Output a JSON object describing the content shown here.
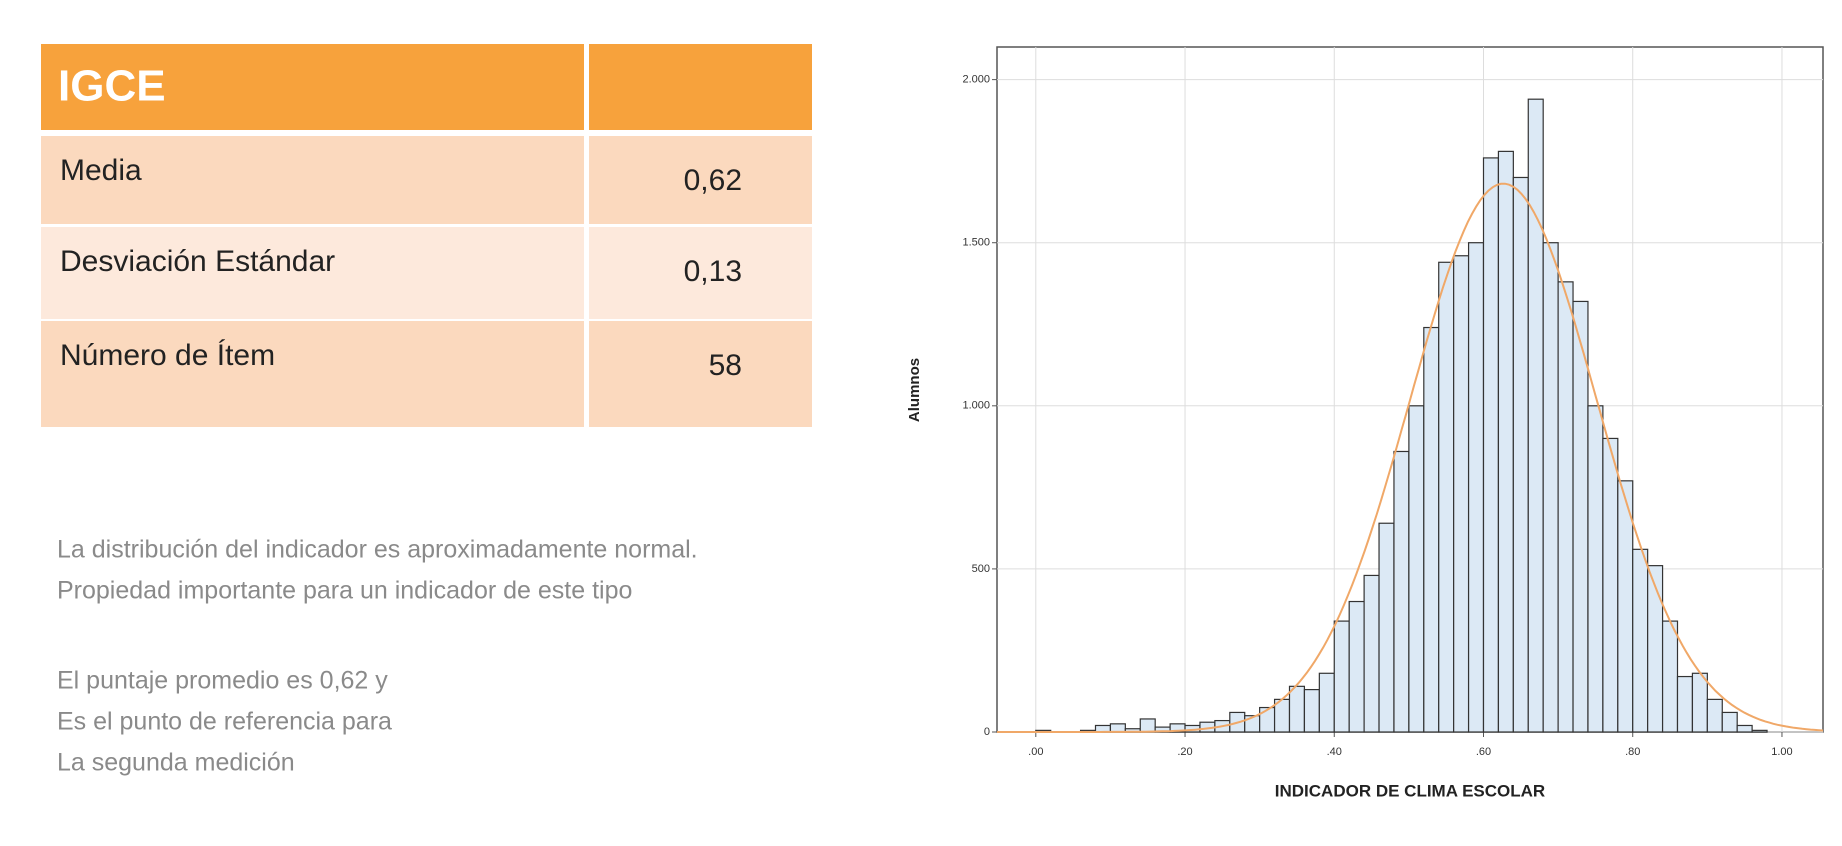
{
  "table": {
    "title": "IGCE",
    "rows": [
      [
        "Media",
        "0,62"
      ],
      [
        "Desviación Estándar",
        "0,13"
      ],
      [
        "Número de Ítem",
        "58"
      ]
    ]
  },
  "notes": [
    [
      "La distribución del indicador es aproximadamente normal.",
      "Propiedad importante para un indicador de este tipo"
    ],
    [
      "El puntaje promedio es 0,62 y",
      "Es el punto de referencia para",
      "La segunda medición"
    ]
  ],
  "chart_data": {
    "type": "histogram",
    "x_label": "INDICADOR DE CLIMA ESCOLAR",
    "y_label": "Alumnos",
    "bins": [
      0,
      0.02,
      0.04,
      0.06,
      0.08,
      0.1,
      0.12,
      0.14,
      0.16,
      0.18,
      0.2,
      0.22,
      0.24,
      0.26,
      0.28,
      0.3,
      0.32,
      0.34,
      0.36,
      0.38,
      0.4,
      0.42,
      0.44,
      0.46,
      0.48,
      0.5,
      0.52,
      0.54,
      0.56,
      0.58,
      0.6,
      0.62,
      0.64,
      0.66,
      0.68,
      0.7,
      0.72,
      0.74,
      0.76,
      0.78,
      0.8,
      0.82,
      0.84,
      0.86,
      0.88,
      0.9,
      0.92,
      0.94,
      0.96,
      0.98,
      1
    ],
    "values": [
      5,
      0,
      0,
      5,
      20,
      25,
      10,
      40,
      15,
      25,
      20,
      30,
      35,
      60,
      50,
      75,
      100,
      140,
      130,
      180,
      340,
      400,
      480,
      640,
      860,
      1000,
      1240,
      1440,
      1460,
      1500,
      1760,
      1780,
      1700,
      1940,
      1500,
      1380,
      1320,
      1000,
      900,
      770,
      560,
      510,
      340,
      170,
      180,
      100,
      60,
      20,
      5,
      0
    ],
    "color": "#dce9f5",
    "edge_color": "#333333",
    "fit": {
      "type": "normal",
      "color": "#f0a868"
    },
    "xlim": [
      -0.052,
      1.055
    ],
    "ylim": [
      0,
      2100
    ],
    "xticks": [
      {
        "value": 0,
        "label": ".00"
      },
      {
        "value": 0.2,
        "label": ".20"
      },
      {
        "value": 0.4,
        "label": ".40"
      },
      {
        "value": 0.6,
        "label": ".60"
      },
      {
        "value": 0.8,
        "label": ".80"
      },
      {
        "value": 1,
        "label": "1.00"
      }
    ],
    "yticks": [
      0,
      500,
      {
        "value": 1000,
        "label": "1.000"
      },
      {
        "value": 1500,
        "label": "1.500"
      },
      {
        "value": 2000,
        "label": "2.000"
      }
    ],
    "grid": true
  }
}
